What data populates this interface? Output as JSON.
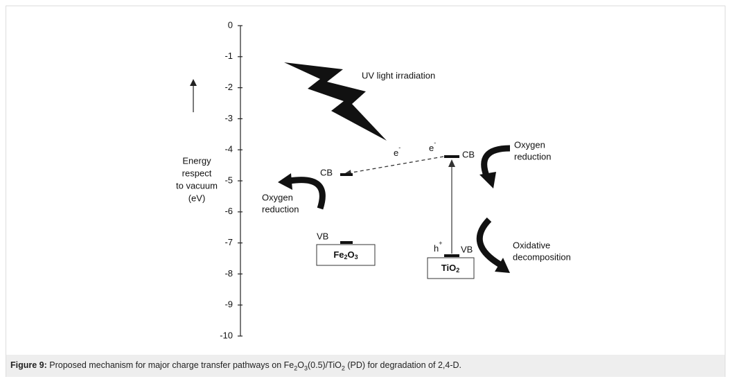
{
  "axis": {
    "yticks": [
      0,
      -1,
      -2,
      -3,
      -4,
      -5,
      -6,
      -7,
      -8,
      -9,
      -10
    ],
    "label": [
      "Energy",
      "respect",
      "to vacuum",
      "(eV)"
    ]
  },
  "light": "UV light irradiation",
  "electron_label": "e",
  "electron_sup": "-",
  "hole_label": "h",
  "hole_sup": "+",
  "fe2o3": {
    "name": [
      "Fe",
      "2",
      "O",
      "3"
    ],
    "cb": "CB",
    "vb": "VB",
    "reaction": [
      "Oxygen",
      "reduction"
    ]
  },
  "tio2": {
    "name": [
      "TiO",
      "2"
    ],
    "cb": "CB",
    "vb": "VB",
    "reaction_cb": [
      "Oxygen",
      "reduction"
    ],
    "reaction_vb": [
      "Oxidative",
      "decomposition"
    ]
  },
  "caption": {
    "label": "Figure 9:",
    "parts": [
      " Proposed mechanism for major charge transfer pathways on Fe",
      "2",
      "O",
      "3",
      "(0.5)/TiO",
      "2",
      " (PD) for degradation of 2,4-D."
    ]
  }
}
